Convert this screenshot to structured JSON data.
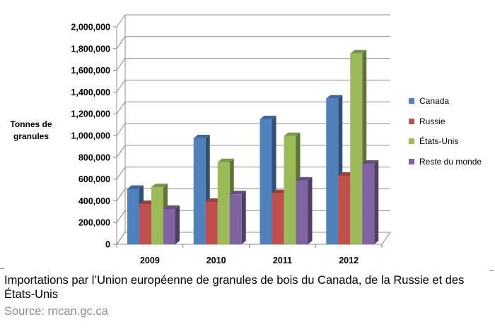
{
  "chart_data": {
    "type": "bar",
    "title": "",
    "xlabel": "",
    "ylabel_lines": [
      "Tonnes de",
      "granules"
    ],
    "categories": [
      "2009",
      "2010",
      "2011",
      "2012"
    ],
    "ylim": [
      0,
      2000000
    ],
    "yticks": [
      {
        "value": 0,
        "label": "0"
      },
      {
        "value": 200000,
        "label": "200,000"
      },
      {
        "value": 400000,
        "label": "400,000"
      },
      {
        "value": 600000,
        "label": "600,000"
      },
      {
        "value": 800000,
        "label": "800,000"
      },
      {
        "value": 1000000,
        "label": "1,000,000"
      },
      {
        "value": 1200000,
        "label": "1,200,000"
      },
      {
        "value": 1400000,
        "label": "1,400,000"
      },
      {
        "value": 1600000,
        "label": "1,600,000"
      },
      {
        "value": 1800000,
        "label": "1,800,000"
      },
      {
        "value": 2000000,
        "label": "2,000,000"
      }
    ],
    "grid": true,
    "style": "3d-clustered-column",
    "legend_position": "right",
    "series": [
      {
        "name": "Canada",
        "color": "#4F81BD",
        "values": [
          510000,
          975000,
          1150000,
          1340000
        ]
      },
      {
        "name": "Russie",
        "color": "#C0504D",
        "values": [
          370000,
          390000,
          470000,
          630000
        ]
      },
      {
        "name": "États-Unis",
        "color": "#9BBB59",
        "values": [
          525000,
          755000,
          995000,
          1755000
        ]
      },
      {
        "name": "Reste du monde",
        "color": "#8064A2",
        "values": [
          325000,
          460000,
          585000,
          740000
        ]
      }
    ]
  },
  "caption": {
    "text": "Importations par l’Union européenne de granules de bois du Canada, de la Russie et des États-Unis",
    "source": "Source: rncan.gc.ca"
  }
}
